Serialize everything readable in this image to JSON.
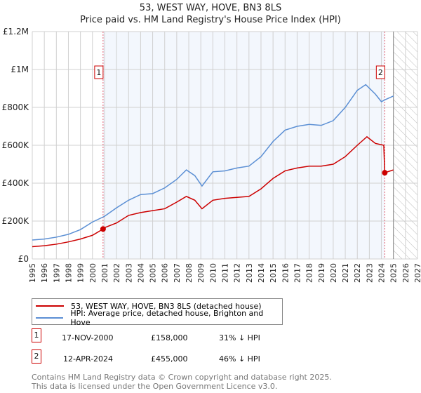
{
  "title": "53, WEST WAY, HOVE, BN3 8LS",
  "subtitle": "Price paid vs. HM Land Registry's House Price Index (HPI)",
  "chart_data": {
    "type": "line",
    "title": "53, WEST WAY, HOVE, BN3 8LS",
    "xlim": [
      1995,
      2027
    ],
    "ylim": [
      0,
      1200000
    ],
    "x_ticks": [
      "1995",
      "1996",
      "1997",
      "1998",
      "1999",
      "2000",
      "2001",
      "2002",
      "2003",
      "2004",
      "2005",
      "2006",
      "2007",
      "2008",
      "2009",
      "2010",
      "2011",
      "2012",
      "2013",
      "2014",
      "2015",
      "2016",
      "2017",
      "2018",
      "2019",
      "2020",
      "2021",
      "2022",
      "2023",
      "2024",
      "2025",
      "2026",
      "2027"
    ],
    "y_ticks": [
      {
        "v": 0,
        "label": "£0"
      },
      {
        "v": 200000,
        "label": "£200K"
      },
      {
        "v": 400000,
        "label": "£400K"
      },
      {
        "v": 600000,
        "label": "£600K"
      },
      {
        "v": 800000,
        "label": "£800K"
      },
      {
        "v": 1000000,
        "label": "£1M"
      },
      {
        "v": 1200000,
        "label": "£1.2M"
      }
    ],
    "grid": true,
    "shaded_range": [
      2000.88,
      2024.28
    ],
    "forecast_hatch_from": 2025,
    "series": [
      {
        "name": "53, WEST WAY, HOVE, BN3 8LS (detached house)",
        "color": "#cc0000",
        "x": [
          1995,
          1996,
          1997,
          1998,
          1999,
          2000,
          2000.88,
          2001,
          2002,
          2003,
          2004,
          2005,
          2006,
          2007,
          2007.8,
          2008.5,
          2009.1,
          2010,
          2011,
          2012,
          2013,
          2014,
          2015,
          2016,
          2017,
          2018,
          2019,
          2020,
          2021,
          2022,
          2022.8,
          2023.5,
          2024.2,
          2024.28,
          2025
        ],
        "y": [
          65000,
          70000,
          78000,
          90000,
          105000,
          125000,
          158000,
          165000,
          190000,
          230000,
          245000,
          255000,
          265000,
          300000,
          330000,
          310000,
          265000,
          310000,
          320000,
          325000,
          330000,
          370000,
          425000,
          465000,
          480000,
          490000,
          490000,
          500000,
          540000,
          600000,
          645000,
          610000,
          600000,
          455000,
          470000
        ]
      },
      {
        "name": "HPI: Average price, detached house, Brighton and Hove",
        "color": "#5b8fd4",
        "x": [
          1995,
          1996,
          1997,
          1998,
          1999,
          2000,
          2001,
          2002,
          2003,
          2004,
          2005,
          2006,
          2007,
          2007.8,
          2008.5,
          2009.1,
          2010,
          2011,
          2012,
          2013,
          2014,
          2015,
          2016,
          2017,
          2018,
          2019,
          2020,
          2021,
          2022,
          2022.7,
          2023.5,
          2024,
          2024.3,
          2025
        ],
        "y": [
          100000,
          105000,
          115000,
          130000,
          155000,
          195000,
          225000,
          270000,
          310000,
          340000,
          345000,
          375000,
          420000,
          470000,
          440000,
          385000,
          460000,
          465000,
          480000,
          490000,
          540000,
          620000,
          680000,
          700000,
          710000,
          705000,
          730000,
          800000,
          890000,
          920000,
          870000,
          830000,
          840000,
          860000
        ]
      }
    ],
    "annotations": [
      {
        "label": "1",
        "x": 2000.88,
        "y": 158000
      },
      {
        "label": "2",
        "x": 2024.28,
        "y": 455000
      }
    ]
  },
  "legend": [
    "53, WEST WAY, HOVE, BN3 8LS (detached house)",
    "HPI: Average price, detached house, Brighton and Hove"
  ],
  "sales": [
    {
      "n": "1",
      "date": "17-NOV-2000",
      "price": "£158,000",
      "delta": "31% ↓ HPI"
    },
    {
      "n": "2",
      "date": "12-APR-2024",
      "price": "£455,000",
      "delta": "46% ↓ HPI"
    }
  ],
  "footer": [
    "Contains HM Land Registry data © Crown copyright and database right 2025.",
    "This data is licensed under the Open Government Licence v3.0."
  ]
}
